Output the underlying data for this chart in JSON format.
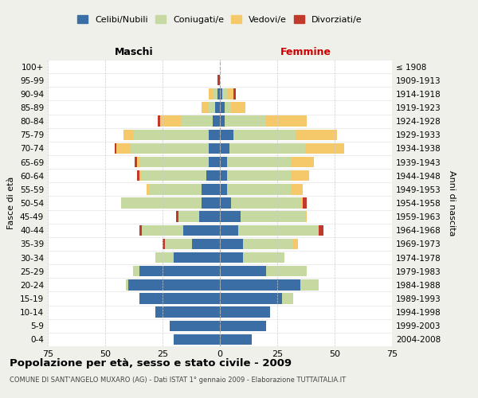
{
  "age_groups": [
    "0-4",
    "5-9",
    "10-14",
    "15-19",
    "20-24",
    "25-29",
    "30-34",
    "35-39",
    "40-44",
    "45-49",
    "50-54",
    "55-59",
    "60-64",
    "65-69",
    "70-74",
    "75-79",
    "80-84",
    "85-89",
    "90-94",
    "95-99",
    "100+"
  ],
  "birth_years": [
    "2004-2008",
    "1999-2003",
    "1994-1998",
    "1989-1993",
    "1984-1988",
    "1979-1983",
    "1974-1978",
    "1969-1973",
    "1964-1968",
    "1959-1963",
    "1954-1958",
    "1949-1953",
    "1944-1948",
    "1939-1943",
    "1934-1938",
    "1929-1933",
    "1924-1928",
    "1919-1923",
    "1914-1918",
    "1909-1913",
    "≤ 1908"
  ],
  "colors": {
    "celibi": "#3a6ea5",
    "coniugati": "#c5d9a0",
    "vedovi": "#f5c96a",
    "divorziati": "#c0392b"
  },
  "male": {
    "celibi": [
      20,
      22,
      28,
      35,
      40,
      35,
      20,
      12,
      16,
      9,
      8,
      8,
      6,
      5,
      5,
      5,
      3,
      2,
      1,
      0,
      0
    ],
    "coniugati": [
      0,
      0,
      0,
      0,
      1,
      3,
      8,
      12,
      18,
      9,
      35,
      23,
      28,
      30,
      34,
      33,
      14,
      3,
      2,
      0,
      0
    ],
    "vedovi": [
      0,
      0,
      0,
      0,
      0,
      0,
      0,
      0,
      0,
      0,
      0,
      1,
      1,
      1,
      6,
      4,
      9,
      3,
      2,
      0,
      0
    ],
    "divorziati": [
      0,
      0,
      0,
      0,
      0,
      0,
      0,
      1,
      1,
      1,
      0,
      0,
      1,
      1,
      1,
      0,
      1,
      0,
      0,
      1,
      0
    ]
  },
  "female": {
    "celibi": [
      14,
      20,
      22,
      27,
      35,
      20,
      10,
      10,
      8,
      9,
      5,
      3,
      3,
      3,
      4,
      6,
      2,
      2,
      1,
      0,
      0
    ],
    "coniugati": [
      0,
      0,
      0,
      5,
      8,
      18,
      18,
      22,
      35,
      28,
      30,
      28,
      28,
      28,
      33,
      27,
      18,
      3,
      2,
      0,
      0
    ],
    "vedovi": [
      0,
      0,
      0,
      0,
      0,
      0,
      0,
      2,
      0,
      1,
      1,
      5,
      8,
      10,
      17,
      18,
      18,
      6,
      3,
      0,
      0
    ],
    "divorziati": [
      0,
      0,
      0,
      0,
      0,
      0,
      0,
      0,
      2,
      0,
      2,
      0,
      0,
      0,
      0,
      0,
      0,
      0,
      1,
      0,
      0
    ]
  },
  "xlim": 75,
  "title": "Popolazione per età, sesso e stato civile - 2009",
  "subtitle": "COMUNE DI SANT'ANGELO MUXARO (AG) - Dati ISTAT 1° gennaio 2009 - Elaborazione TUTTAITALIA.IT",
  "xlabel_left": "Maschi",
  "xlabel_right": "Femmine",
  "ylabel_left": "Fasce di età",
  "ylabel_right": "Anni di nascita",
  "legend_labels": [
    "Celibi/Nubili",
    "Coniugati/e",
    "Vedovi/e",
    "Divorziati/e"
  ],
  "bg_color": "#f0f0eb",
  "plot_bg": "#ffffff"
}
